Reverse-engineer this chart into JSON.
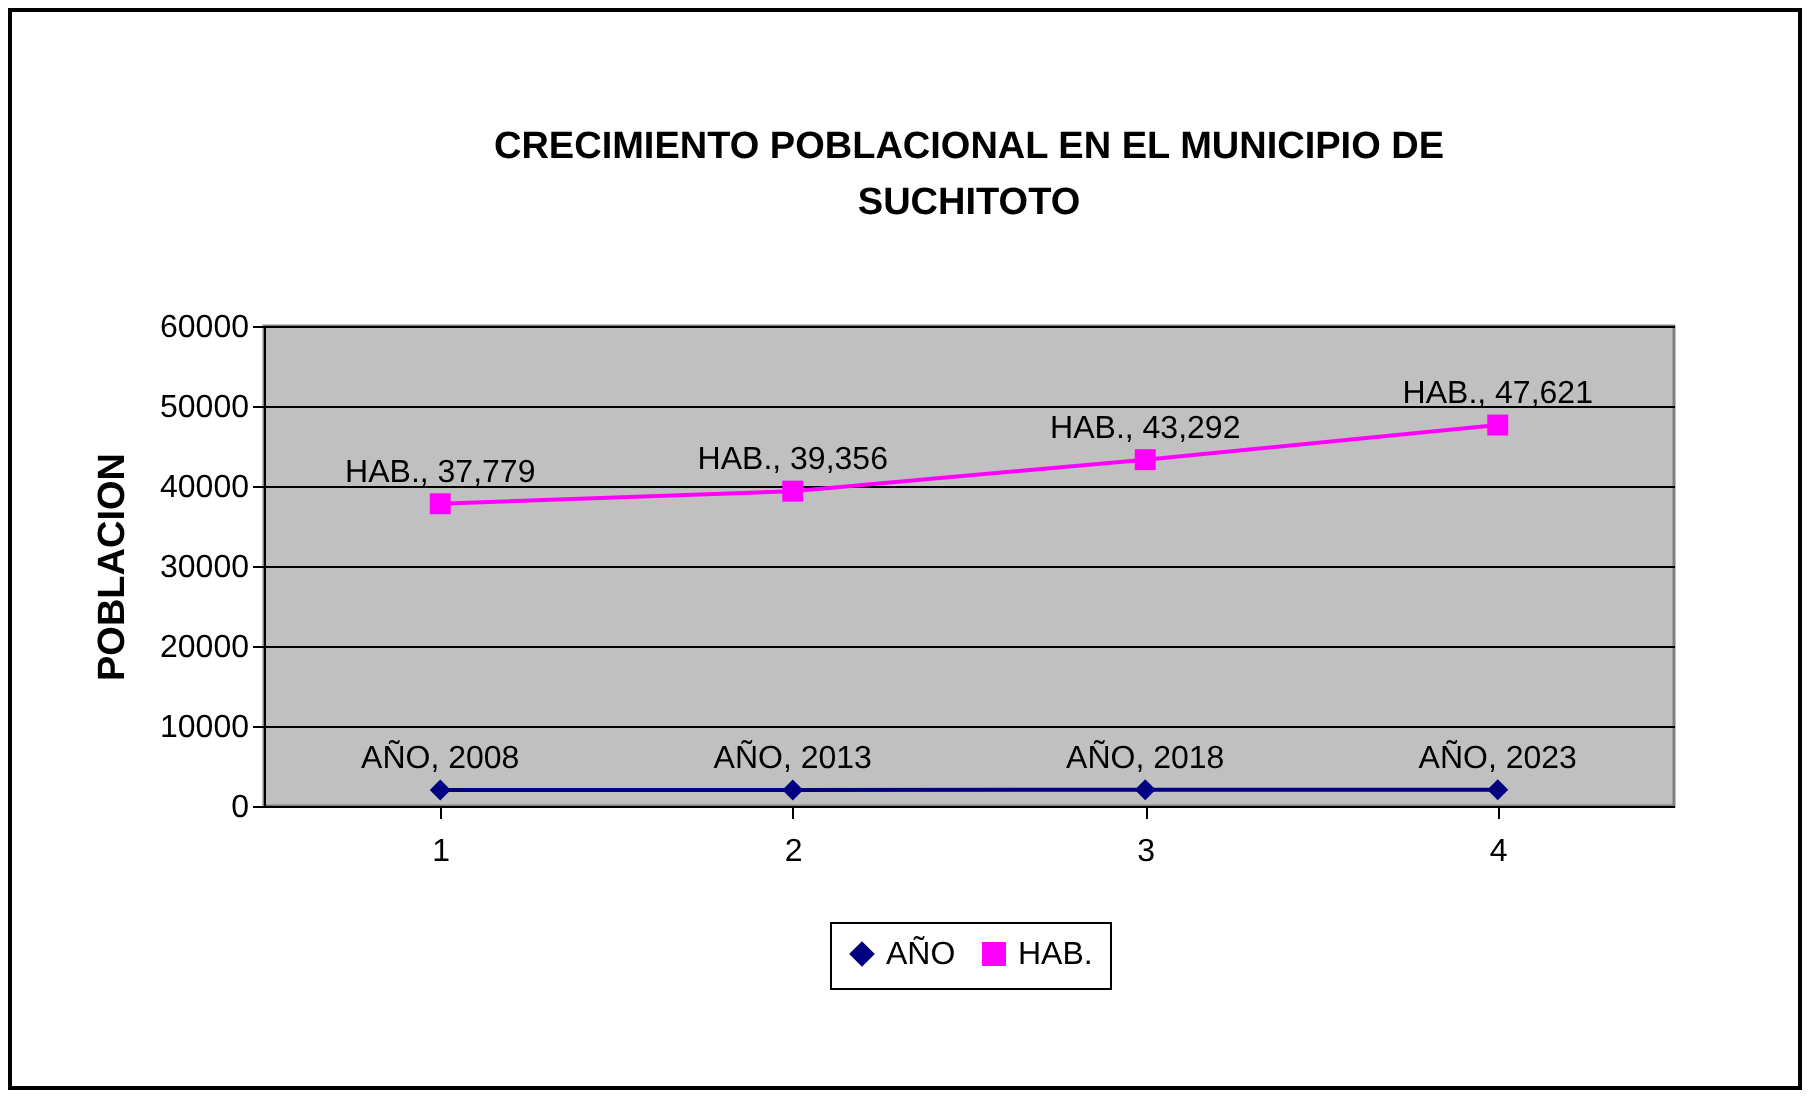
{
  "chart_data": {
    "type": "line",
    "title": "CRECIMIENTO POBLACIONAL EN EL MUNICIPIO DE SUCHITOTO",
    "ylabel": "POBLACION",
    "categories": [
      "1",
      "2",
      "3",
      "4"
    ],
    "series": [
      {
        "name": "AÑO",
        "color": "#000080",
        "marker": "diamond",
        "values": [
          2008,
          2013,
          2018,
          2023
        ],
        "value_labels": [
          "AÑO, 2008",
          "AÑO, 2013",
          "AÑO, 2018",
          "AÑO, 2023"
        ]
      },
      {
        "name": "HAB.",
        "color": "#ff00ff",
        "marker": "square",
        "values": [
          37779,
          39356,
          43292,
          47621
        ],
        "value_labels": [
          "HAB., 37,779",
          "HAB., 39,356",
          "HAB., 43,292",
          "HAB., 47,621"
        ]
      }
    ],
    "ylim": [
      0,
      60000
    ],
    "yticks": [
      0,
      10000,
      20000,
      30000,
      40000,
      50000,
      60000
    ],
    "grid": "y",
    "legend": "bottom",
    "line_style": "solid"
  }
}
